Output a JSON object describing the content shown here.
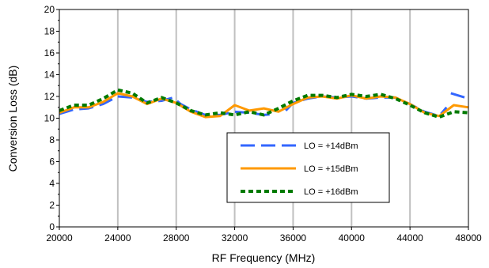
{
  "chart_data": {
    "type": "line",
    "xlabel": "RF Frequency (MHz)",
    "ylabel": "Conversion Loss (dB)",
    "xlim": [
      20000,
      48000
    ],
    "ylim": [
      0,
      20
    ],
    "x_ticks": [
      20000,
      24000,
      28000,
      32000,
      36000,
      40000,
      44000,
      48000
    ],
    "y_ticks": [
      0,
      2,
      4,
      6,
      8,
      10,
      12,
      14,
      16,
      18,
      20
    ],
    "x_tick_labels": [
      "20000",
      "24000",
      "28000",
      "32000",
      "36000",
      "40000",
      "44000",
      "48000"
    ],
    "y_tick_labels": [
      "0",
      "2",
      "4",
      "6",
      "8",
      "10",
      "12",
      "14",
      "16",
      "18",
      "20"
    ],
    "grid": "vertical",
    "legend_position": "lower-right",
    "series": [
      {
        "name": "LO = +14dBm",
        "color": "#3366FF",
        "dash": "long-dash",
        "segments": [
          {
            "x": [
              20000,
              20500,
              21000,
              22000,
              23000,
              24000,
              25000,
              26000,
              27000,
              27800,
              28300,
              29000,
              30000,
              31000,
              32000,
              33000,
              34000,
              34800
            ],
            "y": [
              10.4,
              10.6,
              10.8,
              10.9,
              11.3,
              12.0,
              11.9,
              11.5,
              11.6,
              11.9,
              11.3,
              10.8,
              10.3,
              10.3,
              10.6,
              10.5,
              10.3,
              10.4
            ]
          },
          {
            "x": [
              35500,
              36000,
              37000,
              38000,
              39000,
              40000,
              41000,
              42000,
              43000,
              44000,
              45000,
              46000,
              46500
            ],
            "y": [
              10.7,
              11.4,
              11.8,
              12.0,
              11.9,
              12.0,
              11.8,
              11.9,
              11.9,
              11.3,
              10.6,
              10.2,
              11.0
            ]
          },
          {
            "x": [
              46800,
              48000
            ],
            "y": [
              12.3,
              11.8
            ]
          }
        ]
      },
      {
        "name": "LO = +15dBm",
        "color": "#FF9900",
        "dash": "solid",
        "segments": [
          {
            "x": [
              20000,
              21000,
              22000,
              23000,
              24000,
              25000,
              26000,
              27000,
              28000,
              29000,
              30000,
              31000,
              32000,
              33000,
              34000,
              35000,
              36000,
              37000,
              38000,
              39000,
              40000,
              41000,
              42000,
              43000,
              44000,
              45000,
              46000,
              47000,
              48000
            ],
            "y": [
              10.5,
              11.0,
              11.0,
              11.5,
              12.3,
              12.0,
              11.3,
              11.8,
              11.4,
              10.6,
              10.1,
              10.2,
              11.2,
              10.7,
              10.9,
              10.6,
              11.3,
              11.9,
              12.0,
              11.8,
              12.1,
              11.8,
              12.0,
              11.9,
              11.3,
              10.5,
              10.2,
              11.2,
              11.0
            ]
          }
        ]
      },
      {
        "name": "LO = +16dBm",
        "color": "#007A00",
        "dash": "dotted",
        "segments": [
          {
            "x": [
              20000,
              21000,
              22000,
              23000,
              24000,
              25000,
              26000,
              27000,
              28000,
              29000,
              30000,
              31000,
              32000,
              33000,
              34000,
              35000,
              36000,
              37000,
              38000,
              39000,
              40000,
              41000,
              42000,
              43000,
              44000,
              45000,
              46000,
              47000,
              48000
            ],
            "y": [
              10.7,
              11.2,
              11.2,
              11.8,
              12.6,
              12.3,
              11.4,
              11.9,
              11.4,
              10.7,
              10.3,
              10.5,
              10.3,
              10.6,
              10.3,
              10.9,
              11.6,
              12.1,
              12.1,
              11.9,
              12.2,
              12.0,
              12.2,
              11.8,
              11.2,
              10.5,
              10.1,
              10.6,
              10.5
            ]
          }
        ]
      }
    ]
  }
}
